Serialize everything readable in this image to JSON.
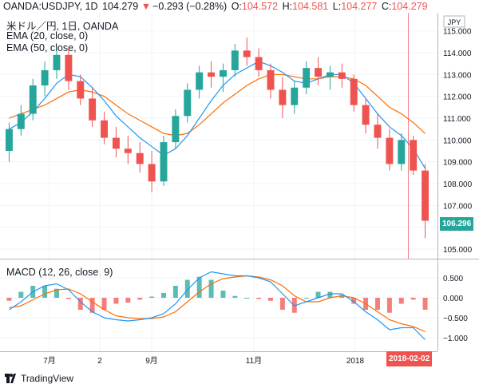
{
  "header": {
    "symbol": "OANDA:USDJPY, 1D",
    "last": "104.279",
    "change": "−0.293 (−0.28%)",
    "o_label": "O:",
    "o_value": "104.572",
    "h_label": "H:",
    "h_value": "104.581",
    "l_label": "L:",
    "l_value": "104.277",
    "c_label": "C:",
    "c_value": "104.279",
    "down_color": "#ef5350"
  },
  "legend": {
    "source": "米ドル／円, 1日, OANDA",
    "ema20": "EMA (20, close, 0)",
    "ema50": "EMA (50, close, 0)",
    "macd": "MACD (12, 26, close, 9)"
  },
  "currency": "JPY",
  "price_tag": "106.296",
  "date_tag": "2018-02-02",
  "brand": "TradingView",
  "colors": {
    "up": "#26a69a",
    "down": "#ef5350",
    "ema20": "#2196f3",
    "ema50": "#ff6d00",
    "macd_line": "#2196f3",
    "signal_line": "#ff6d00",
    "hist_up": "#26a69a",
    "hist_down": "#ef5350"
  },
  "chart_data": [
    {
      "type": "line",
      "title": "",
      "x_ticks": [
        "7月",
        "2",
        "9月",
        "11月",
        "2018",
        "2018-02-02"
      ],
      "y_ticks": [
        "115.000",
        "114.000",
        "113.000",
        "112.000",
        "111.000",
        "110.000",
        "109.000",
        "108.000",
        "107.000",
        "106.000",
        "105.000"
      ],
      "ylim": [
        104.7,
        115.3
      ],
      "series": [
        {
          "name": "EMA (20, close, 0)",
          "values": [
            110.5,
            110.8,
            111.3,
            111.9,
            112.6,
            113.0,
            112.9,
            112.4,
            111.8,
            111.1,
            110.6,
            110.1,
            109.7,
            109.3,
            109.6,
            110.2,
            111.0,
            111.8,
            112.5,
            113.0,
            113.3,
            113.6,
            113.4,
            113.1,
            112.7,
            112.6,
            112.8,
            113.0,
            113.0,
            112.6,
            111.9,
            111.2,
            110.6,
            110.2,
            109.6,
            108.7
          ]
        },
        {
          "name": "EMA (50, close, 0)",
          "values": [
            111.0,
            111.2,
            111.4,
            111.6,
            111.9,
            112.2,
            112.3,
            112.2,
            112.0,
            111.6,
            111.2,
            110.9,
            110.6,
            110.3,
            110.2,
            110.3,
            110.7,
            111.2,
            111.7,
            112.1,
            112.5,
            112.8,
            113.0,
            113.0,
            112.9,
            112.8,
            112.8,
            112.9,
            112.9,
            112.8,
            112.5,
            112.0,
            111.5,
            111.2,
            110.8,
            110.3
          ]
        }
      ],
      "candles_ohlc": [
        [
          109.5,
          110.8,
          109.0,
          110.5
        ],
        [
          110.5,
          111.6,
          110.2,
          111.2
        ],
        [
          111.2,
          112.8,
          110.9,
          112.5
        ],
        [
          112.5,
          113.6,
          112.0,
          113.2
        ],
        [
          113.2,
          114.3,
          112.8,
          113.9
        ],
        [
          113.9,
          114.2,
          112.3,
          112.7
        ],
        [
          112.7,
          113.0,
          111.6,
          111.9
        ],
        [
          111.9,
          112.4,
          110.6,
          110.9
        ],
        [
          110.9,
          111.3,
          109.8,
          110.1
        ],
        [
          110.1,
          110.6,
          109.2,
          109.6
        ],
        [
          109.6,
          110.2,
          108.9,
          109.4
        ],
        [
          109.4,
          109.9,
          108.5,
          108.9
        ],
        [
          108.9,
          109.5,
          107.6,
          108.1
        ],
        [
          108.1,
          110.2,
          107.9,
          109.9
        ],
        [
          109.9,
          111.4,
          109.6,
          111.1
        ],
        [
          111.1,
          112.6,
          110.8,
          112.3
        ],
        [
          112.3,
          113.4,
          111.9,
          113.1
        ],
        [
          113.1,
          113.6,
          112.4,
          112.9
        ],
        [
          112.9,
          113.5,
          112.2,
          113.2
        ],
        [
          113.2,
          114.4,
          112.9,
          114.1
        ],
        [
          114.1,
          114.7,
          113.4,
          113.8
        ],
        [
          113.8,
          114.2,
          112.9,
          113.2
        ],
        [
          113.2,
          113.5,
          111.9,
          112.3
        ],
        [
          112.3,
          112.9,
          111.0,
          111.6
        ],
        [
          111.6,
          112.7,
          111.2,
          112.4
        ],
        [
          112.4,
          113.6,
          112.1,
          113.3
        ],
        [
          113.3,
          113.8,
          112.5,
          112.9
        ],
        [
          112.9,
          113.4,
          112.3,
          113.1
        ],
        [
          113.1,
          113.5,
          112.4,
          112.8
        ],
        [
          112.8,
          113.0,
          111.3,
          111.6
        ],
        [
          111.6,
          111.9,
          110.3,
          110.7
        ],
        [
          110.7,
          111.2,
          109.6,
          110.1
        ],
        [
          110.1,
          110.5,
          108.6,
          108.9
        ],
        [
          108.9,
          110.3,
          108.6,
          110.0
        ],
        [
          110.0,
          110.2,
          108.4,
          108.6
        ],
        [
          108.6,
          108.9,
          105.5,
          106.3
        ]
      ]
    },
    {
      "type": "line",
      "title": "MACD (12, 26, close, 9)",
      "y_ticks": [
        "0.500",
        "0.000",
        "−0.500",
        "−1.000"
      ],
      "ylim": [
        -1.25,
        0.85
      ],
      "series": [
        {
          "name": "MACD",
          "values": [
            -0.3,
            -0.1,
            0.15,
            0.3,
            0.35,
            0.2,
            -0.1,
            -0.35,
            -0.5,
            -0.55,
            -0.58,
            -0.55,
            -0.5,
            -0.4,
            -0.15,
            0.2,
            0.5,
            0.65,
            0.6,
            0.55,
            0.55,
            0.5,
            0.4,
            0.1,
            -0.2,
            -0.1,
            0.0,
            0.1,
            0.1,
            -0.1,
            -0.35,
            -0.55,
            -0.8,
            -0.75,
            -0.75,
            -1.05
          ]
        },
        {
          "name": "Signal",
          "values": [
            -0.25,
            -0.2,
            -0.05,
            0.1,
            0.2,
            0.22,
            0.1,
            -0.1,
            -0.3,
            -0.45,
            -0.5,
            -0.52,
            -0.52,
            -0.48,
            -0.35,
            -0.1,
            0.15,
            0.35,
            0.48,
            0.52,
            0.55,
            0.52,
            0.45,
            0.3,
            0.05,
            -0.1,
            -0.1,
            0.0,
            0.05,
            0.0,
            -0.15,
            -0.35,
            -0.55,
            -0.65,
            -0.72,
            -0.85
          ]
        }
      ]
    }
  ]
}
